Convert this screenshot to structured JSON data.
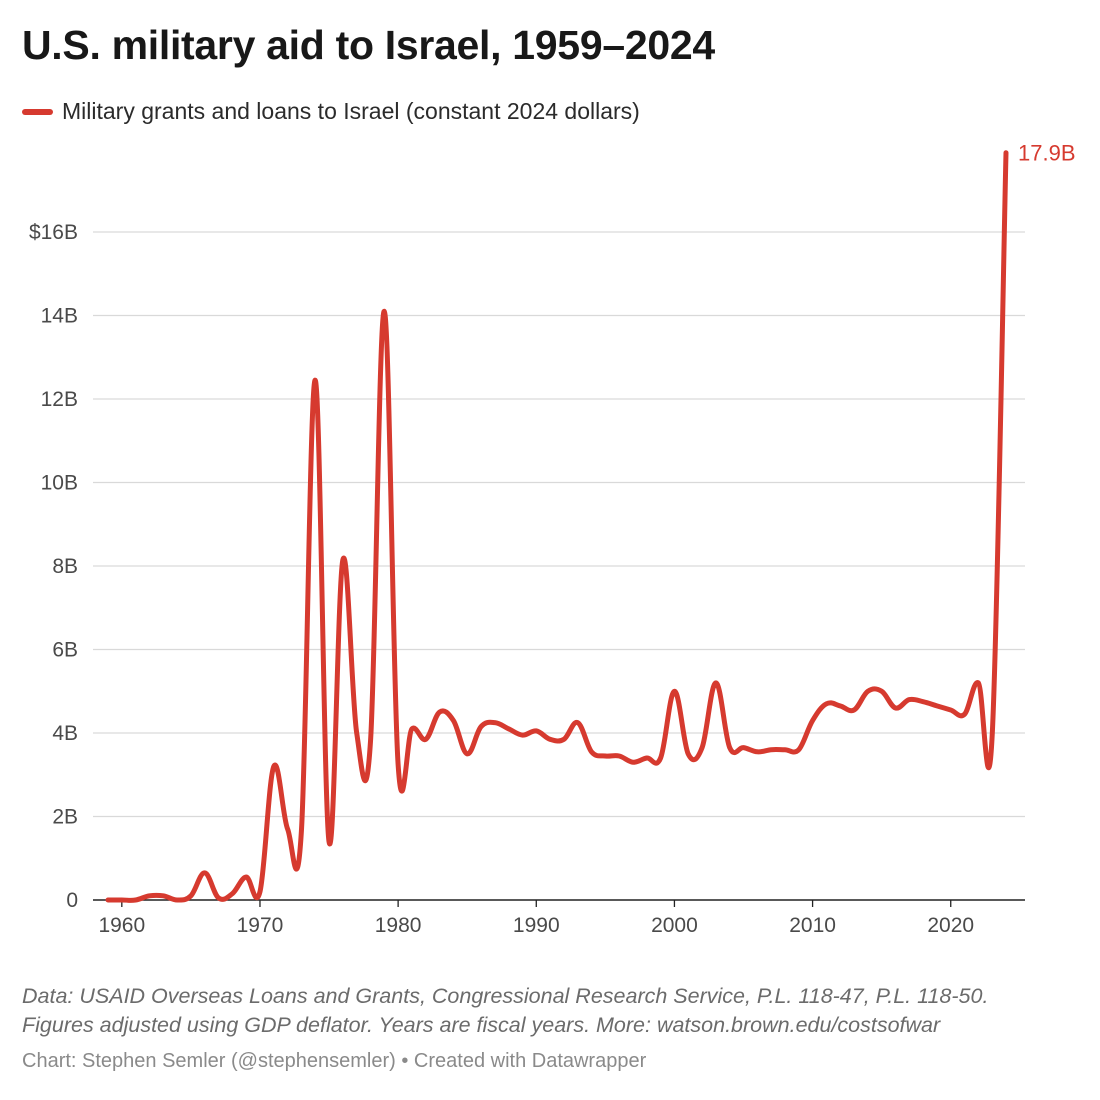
{
  "header": {
    "title": "U.S. military aid to Israel, 1959–2024"
  },
  "legend": {
    "label": "Military grants and loans to Israel (constant 2024 dollars)"
  },
  "footer": {
    "notes_line1": "Data: USAID Overseas Loans and Grants, Congressional Research Service, P.L. 118-47, P.L. 118-50.",
    "notes_line2": "Figures adjusted using GDP deflator. Years are fiscal years. More: watson.brown.edu/costsofwar",
    "credit": "Chart: Stephen Semler (@stephensemler) • Created with Datawrapper"
  },
  "colors": {
    "series": "#d63a2f",
    "grid": "#d9d9d9",
    "axis": "#222222"
  },
  "chart_data": {
    "type": "line",
    "title": "U.S. military aid to Israel, 1959–2024",
    "xlabel": "",
    "ylabel": "",
    "xlim": [
      1959,
      2024
    ],
    "ylim": [
      0,
      18
    ],
    "grid": true,
    "legend_position": "top-left",
    "x_ticks": [
      1960,
      1970,
      1980,
      1990,
      2000,
      2010,
      2020
    ],
    "x_tick_labels": [
      "1960",
      "1970",
      "1980",
      "1990",
      "2000",
      "2010",
      "2020"
    ],
    "y_ticks": [
      0,
      2,
      4,
      6,
      8,
      10,
      12,
      14,
      16
    ],
    "y_tick_labels": [
      "0",
      "2B",
      "4B",
      "6B",
      "8B",
      "10B",
      "12B",
      "14B",
      "$16B"
    ],
    "end_label": "17.9B",
    "series": [
      {
        "name": "Military grants and loans to Israel (constant 2024 dollars)",
        "x": [
          1959,
          1960,
          1961,
          1962,
          1963,
          1964,
          1965,
          1966,
          1967,
          1968,
          1969,
          1970,
          1971,
          1972,
          1973,
          1974,
          1975,
          1976,
          1977,
          1978,
          1979,
          1980,
          1981,
          1982,
          1983,
          1984,
          1985,
          1986,
          1987,
          1988,
          1989,
          1990,
          1991,
          1992,
          1993,
          1994,
          1995,
          1996,
          1997,
          1998,
          1999,
          2000,
          2001,
          2002,
          2003,
          2004,
          2005,
          2006,
          2007,
          2008,
          2009,
          2010,
          2011,
          2012,
          2013,
          2014,
          2015,
          2016,
          2017,
          2018,
          2019,
          2020,
          2021,
          2022,
          2023,
          2024
        ],
        "values": [
          0,
          0,
          0,
          0.1,
          0.1,
          0,
          0.1,
          0.65,
          0.05,
          0.15,
          0.55,
          0.2,
          3.2,
          1.7,
          1.65,
          12.45,
          1.4,
          8.15,
          4.0,
          3.8,
          14.1,
          3.25,
          4.1,
          3.85,
          4.5,
          4.3,
          3.5,
          4.15,
          4.25,
          4.1,
          3.95,
          4.05,
          3.85,
          3.85,
          4.25,
          3.55,
          3.45,
          3.45,
          3.3,
          3.4,
          3.4,
          5.0,
          3.5,
          3.65,
          5.2,
          3.65,
          3.65,
          3.55,
          3.6,
          3.6,
          3.6,
          4.3,
          4.7,
          4.65,
          4.55,
          5.0,
          5.0,
          4.6,
          4.8,
          4.75,
          4.65,
          4.55,
          4.45,
          5.2,
          3.95,
          17.9
        ]
      }
    ]
  }
}
